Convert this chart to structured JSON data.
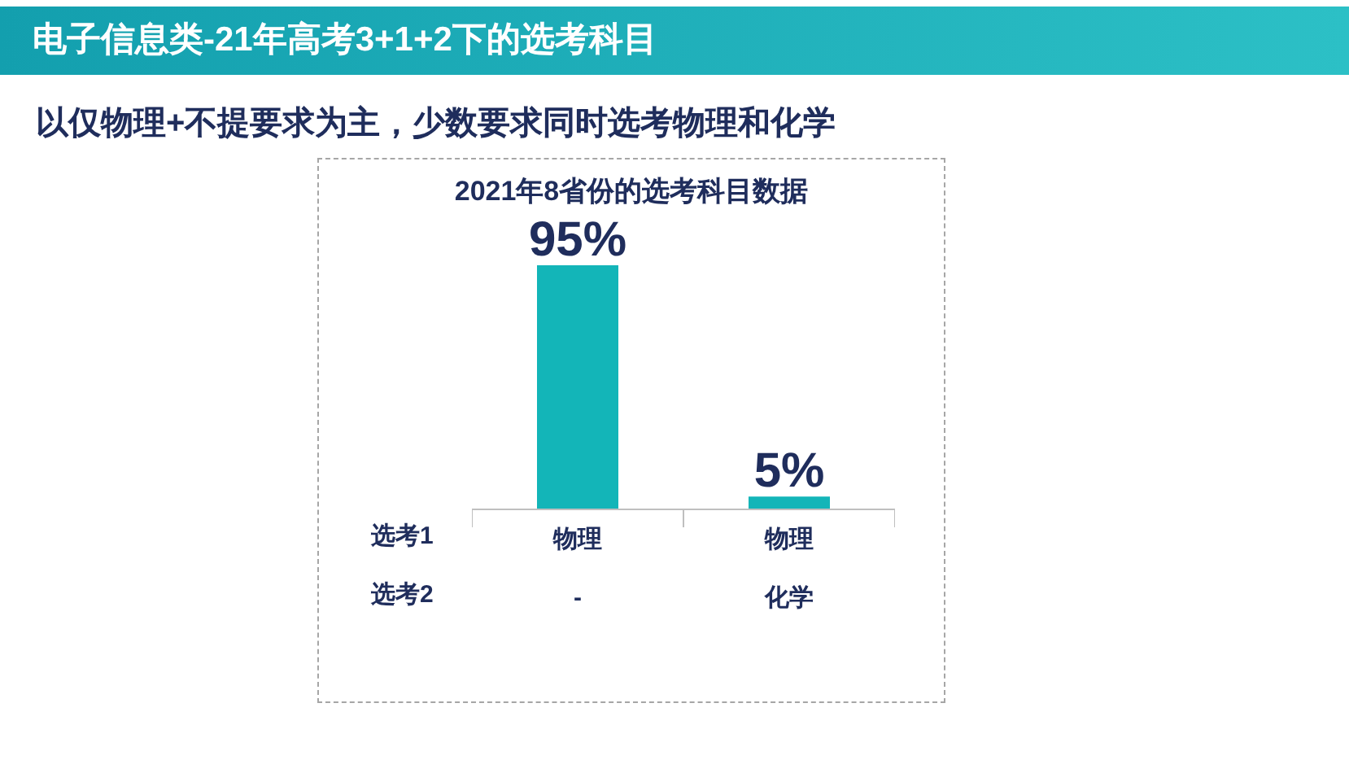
{
  "chart_data": {
    "type": "bar",
    "title": "电子信息类-21年高考3+1+2下的选考科目",
    "subtitle": "以仅物理+不提要求为主，少数要求同时选考物理和化学",
    "categories": [
      "物理",
      "物理"
    ],
    "values": [
      95,
      5
    ],
    "color": "#13b5b8",
    "data_labels": true,
    "value_labels": [
      "95%",
      "5%"
    ],
    "annotations": [
      "2021年8省份的选考科目数据",
      "选考1",
      "选考2",
      "-",
      "化学"
    ]
  }
}
